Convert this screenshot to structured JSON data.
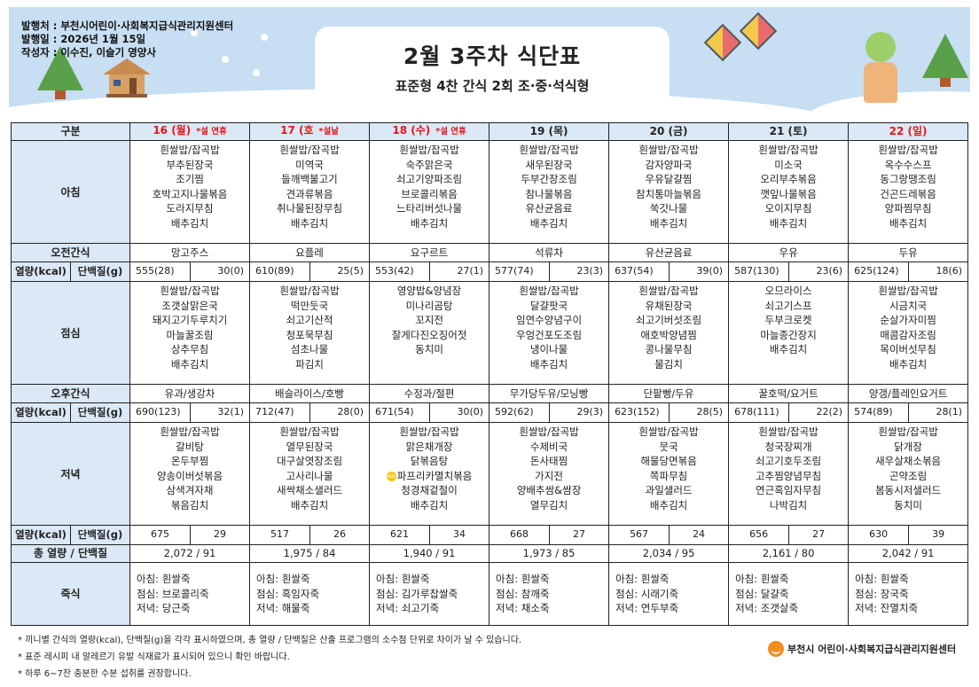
{
  "header": {
    "publisher": "발행처 : 부천시어린이·사회복지급식관리지원센터",
    "issue_date": "발행일 : 2026년 1월 15일",
    "author": "작성자 : 이수진, 이슬기 영양사",
    "title": "2월 3주차 식단표",
    "subtitle": "표준형 4찬 간식 2회 조·중·석식형"
  },
  "labels": {
    "category": "구분",
    "breakfast": "아침",
    "am_snack": "오전간식",
    "kcal": "열량(kcal)",
    "protein": "단백질(g)",
    "lunch": "점심",
    "pm_snack": "오후간식",
    "dinner": "저녁",
    "total": "총 열량 / 단백질",
    "porridge": "죽식"
  },
  "colors": {
    "holiday": "#e8141b",
    "header_bg": "#dbe8f5",
    "banner_bg": "#c7def3"
  },
  "days": [
    {
      "date": "16 (월)",
      "note": "*설 연휴",
      "holiday": true,
      "breakfast": [
        "흰쌀밥/잡곡밥",
        "부추된장국",
        "조기찜",
        "호박고지나물볶음",
        "도라지무침",
        "배추김치"
      ],
      "am_snack": "망고주스",
      "am_kcal": "555(28)",
      "am_protein": "30(0)",
      "lunch": [
        "흰쌀밥/잡곡밥",
        "조갯살맑은국",
        "돼지고기두루치기",
        "마늘꿀조림",
        "상추무침",
        "배추김치"
      ],
      "pm_snack": "유과/생강차",
      "pm_kcal": "690(123)",
      "pm_protein": "32(1)",
      "dinner": [
        "흰쌀밥/잡곡밥",
        "갈비탕",
        "온두부찜",
        "양송이버섯볶음",
        "삼색겨자채",
        "볶음김치"
      ],
      "dinner_kcal": "675",
      "dinner_protein": "29",
      "total": "2,072  /  91",
      "porridge": [
        "아침: 흰쌀죽",
        "점심: 브로콜리죽",
        "저녁: 당근죽"
      ]
    },
    {
      "date": "17 (호",
      "note": "*설날",
      "holiday": true,
      "breakfast": [
        "흰쌀밥/잡곡밥",
        "미역국",
        "들깨백불고기",
        "견과류볶음",
        "취나물된장무침",
        "배추김치"
      ],
      "am_snack": "요플레",
      "am_kcal": "610(89)",
      "am_protein": "25(5)",
      "lunch": [
        "흰쌀밥/잡곡밥",
        "떡만둣국",
        "쇠고기산적",
        "청포묵무침",
        "섬초나물",
        "파김치"
      ],
      "pm_snack": "배슬라이스/호빵",
      "pm_kcal": "712(47)",
      "pm_protein": "28(0)",
      "dinner": [
        "흰쌀밥/잡곡밥",
        "열무된장국",
        "대구살엿장조림",
        "고사리나물",
        "새싹채소샐러드",
        "배추김치"
      ],
      "dinner_kcal": "517",
      "dinner_protein": "26",
      "total": "1,975  /  84",
      "porridge": [
        "아침: 흰쌀죽",
        "점심: 흑임자죽",
        "저녁: 해물죽"
      ]
    },
    {
      "date": "18 (수)",
      "note": "*설 연휴",
      "holiday": true,
      "breakfast": [
        "흰쌀밥/잡곡밥",
        "숙주맑은국",
        "쇠고기양파조림",
        "브로콜리볶음",
        "느타리버섯나물",
        "배추김치"
      ],
      "am_snack": "요구르트",
      "am_kcal": "553(42)",
      "am_protein": "27(1)",
      "lunch": [
        "영양밥&양념장",
        "미나리곰탕",
        "꼬지전",
        "잘게다진오징어젓",
        "동치미"
      ],
      "pm_snack": "수정과/절편",
      "pm_kcal": "671(54)",
      "pm_protein": "30(0)",
      "dinner": [
        "흰쌀밥/잡곡밥",
        "맑은채개장",
        "닭볶음탕",
        "파프리카멸치볶음",
        "청경채겉절이",
        "배추김치"
      ],
      "dinner_new": 3,
      "new_badge": "NEW",
      "dinner_kcal": "621",
      "dinner_protein": "34",
      "total": "1,940  /  91",
      "porridge": [
        "아침: 흰쌀죽",
        "점심: 김가루찹쌀죽",
        "저녁: 쇠고기죽"
      ]
    },
    {
      "date": "19 (목)",
      "note": "",
      "holiday": false,
      "breakfast": [
        "흰쌀밥/잡곡밥",
        "새우된장국",
        "두부간장조림",
        "참나물볶음",
        "유산균음료",
        "배추김치"
      ],
      "am_snack": "석류차",
      "am_kcal": "577(74)",
      "am_protein": "23(3)",
      "lunch": [
        "흰쌀밥/잡곡밥",
        "달걀팟국",
        "임연수양념구이",
        "우엉건포도조림",
        "냉이나물",
        "배추김치"
      ],
      "pm_snack": "무가당두유/모닝빵",
      "pm_kcal": "592(62)",
      "pm_protein": "29(3)",
      "dinner": [
        "흰쌀밥/잡곡밥",
        "수제비국",
        "돈사태찜",
        "가지전",
        "양배추쌈&쌈장",
        "열무김치"
      ],
      "dinner_kcal": "668",
      "dinner_protein": "27",
      "total": "1,973  /  85",
      "porridge": [
        "아침: 흰쌀죽",
        "점심: 참깨죽",
        "저녁: 채소죽"
      ]
    },
    {
      "date": "20 (금)",
      "note": "",
      "holiday": false,
      "breakfast": [
        "흰쌀밥/잡곡밥",
        "감자양파국",
        "우유달걀찜",
        "참치통마늘볶음",
        "쑥갓나물",
        "배추김치"
      ],
      "am_snack": "유산균음료",
      "am_kcal": "637(54)",
      "am_protein": "39(0)",
      "lunch": [
        "흰쌀밥/잡곡밥",
        "유채된장국",
        "쇠고기버섯조림",
        "애호박양념찜",
        "콩나물무침",
        "물김치"
      ],
      "pm_snack": "단팥빵/두유",
      "pm_kcal": "623(152)",
      "pm_protein": "28(5)",
      "dinner": [
        "흰쌀밥/잡곡밥",
        "뭇국",
        "해물당면볶음",
        "쪽파무침",
        "과일샐러드",
        "배추김치"
      ],
      "dinner_kcal": "567",
      "dinner_protein": "24",
      "total": "2,034  /  95",
      "porridge": [
        "아침: 흰쌀죽",
        "점심: 시래기죽",
        "저녁:  연두부죽"
      ]
    },
    {
      "date": "21 (토)",
      "note": "",
      "holiday": false,
      "breakfast": [
        "흰쌀밥/잡곡밥",
        "미소국",
        "오리부추볶음",
        "깻잎나물볶음",
        "오이지무침",
        "배추김치"
      ],
      "am_snack": "우유",
      "am_kcal": "587(130)",
      "am_protein": "23(6)",
      "lunch": [
        "오므라이스",
        "쇠고기스프",
        "두부크로켓",
        "마늘종간장지",
        "배추김치"
      ],
      "pm_snack": "꿀호떡/요거트",
      "pm_kcal": "678(111)",
      "pm_protein": "22(2)",
      "dinner": [
        "흰쌀밥/잡곡밥",
        "청국장찌개",
        "쇠고기호두조림",
        "고추찜양념무침",
        "연근흑임자무침",
        "나박김치"
      ],
      "dinner_kcal": "656",
      "dinner_protein": "27",
      "total": "2,161  /  80",
      "porridge": [
        "아침: 흰쌀죽",
        "점심: 달걀죽",
        "저녁: 조갯살죽"
      ]
    },
    {
      "date": "22 (일)",
      "note": "",
      "holiday": true,
      "breakfast": [
        "흰쌀밥/잡곡밥",
        "옥수수스프",
        "동그랑땡조림",
        "건곤드레볶음",
        "양파찜무침",
        "배추김치"
      ],
      "am_snack": "두유",
      "am_kcal": "625(124)",
      "am_protein": "18(6)",
      "lunch": [
        "흰쌀밥/잡곡밥",
        "시금치국",
        "순살가자미찜",
        "매콤감자조림",
        "목이버섯무침",
        "배추김치"
      ],
      "pm_snack": "양갱/플레인요거트",
      "pm_kcal": "574(89)",
      "pm_protein": "28(1)",
      "dinner": [
        "흰쌀밥/잡곡밥",
        "닭개장",
        "새우살채소볶음",
        "곤약조림",
        "봄동시저샐러드",
        "동치미"
      ],
      "dinner_kcal": "630",
      "dinner_protein": "39",
      "total": "2,042  /  91",
      "porridge": [
        "아침: 흰쌀죽",
        "점심: 장국죽",
        "저녁: 잔멸치죽"
      ]
    }
  ],
  "footnotes": [
    "* 끼니별 간식의 열량(kcal), 단백질(g)을 각각 표시하였으며, 총 열량 / 단백질은 산출 프로그램의 소수점 단위로 차이가 날 수 있습니다.",
    "* 표준 레시피 내 알레르기 유발 식재료가 표시되어 있으니 확인 바랍니다.",
    "* 하루 6~7잔 충분한 수분 섭취를 권장합니다."
  ],
  "footer_logo": "부천시 어린이·사회복지급식관리지원센터"
}
